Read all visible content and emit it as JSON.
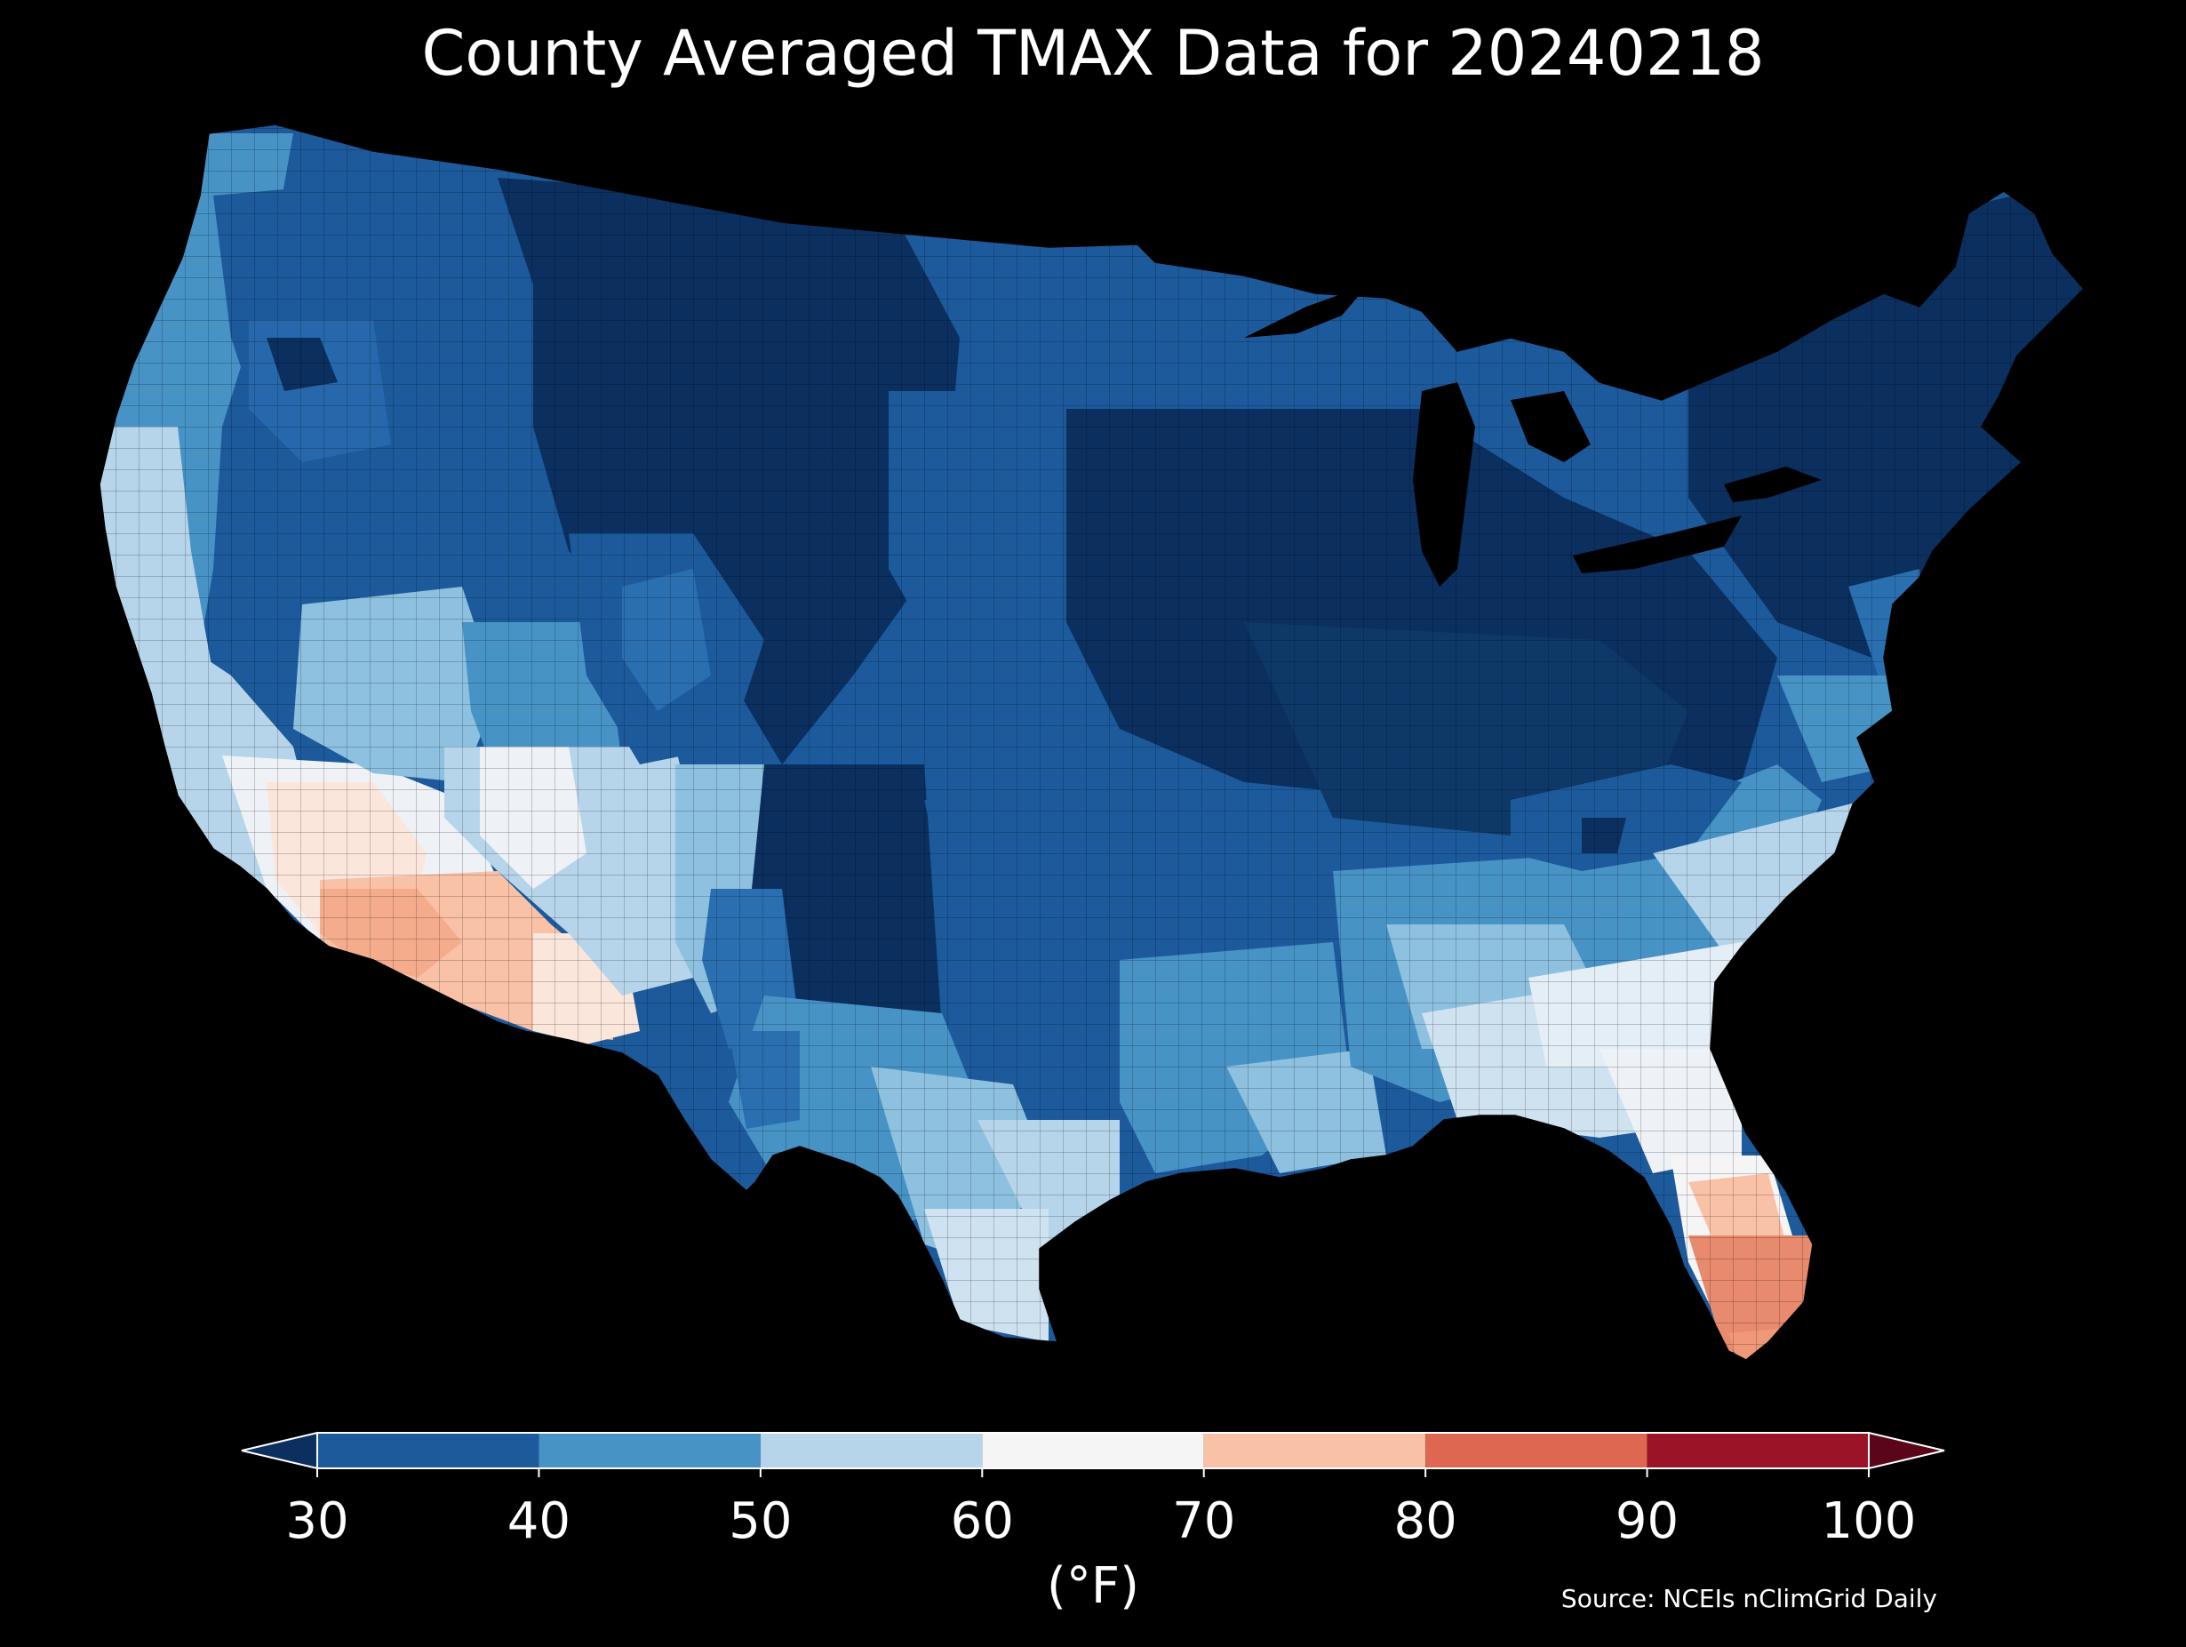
{
  "title": "County Averaged TMAX Data for 20240218",
  "legend": {
    "unit": "(°F)",
    "ticks": [
      "30",
      "40",
      "50",
      "60",
      "70",
      "80",
      "90",
      "100"
    ],
    "bins": [
      {
        "range": "<30",
        "color": "#0b2f5e"
      },
      {
        "range": "30-40",
        "color": "#1c5a9c"
      },
      {
        "range": "40-50",
        "color": "#4793c6"
      },
      {
        "range": "50-60",
        "color": "#b7d5ea"
      },
      {
        "range": "60-70",
        "color": "#f5f5f5"
      },
      {
        "range": "70-80",
        "color": "#f9c1a6"
      },
      {
        "range": "80-90",
        "color": "#dd6750"
      },
      {
        "range": "90-100",
        "color": "#9a1327"
      },
      {
        "range": ">100",
        "color": "#5a0518"
      }
    ]
  },
  "source": "Source: NCEIs nClimGrid Daily",
  "map": {
    "region": "Contiguous United States counties",
    "variable": "TMAX",
    "date": "20240218",
    "background": "#000000"
  }
}
